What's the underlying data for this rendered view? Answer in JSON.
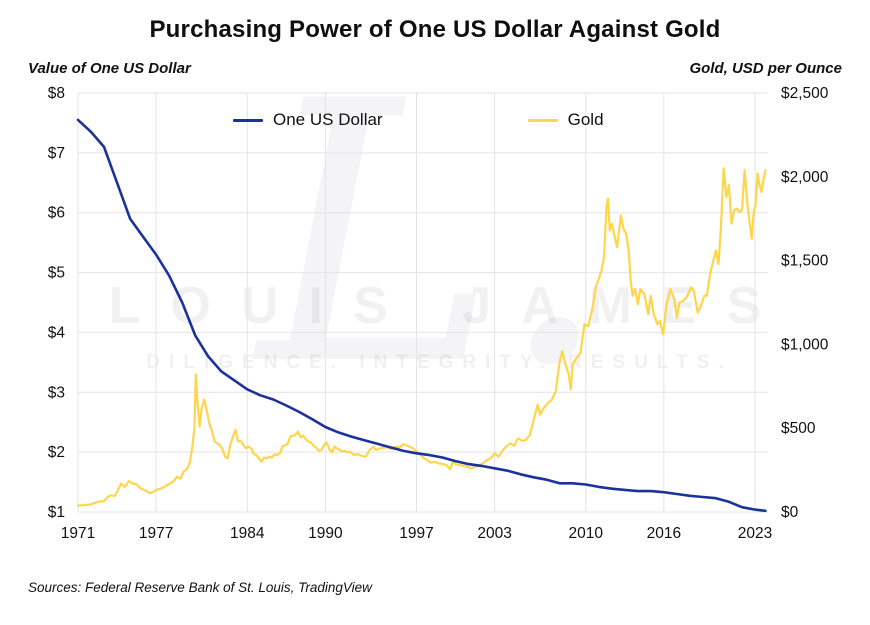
{
  "title": "Purchasing Power of One US Dollar Against Gold",
  "sources": "Sources: Federal Reserve Bank of St. Louis, TradingView",
  "watermark": {
    "monogram": "L.",
    "main": "LOUIS JAMES",
    "sub": "DILIGENCE. INTEGRITY. RESULTS."
  },
  "chart_data": {
    "type": "line",
    "title": "Purchasing Power of One US Dollar Against Gold",
    "grid": true,
    "grid_color": "#e4e4e4",
    "legend_position": "top-center",
    "x_min": 1971,
    "x_max": 2024,
    "x_ticks": [
      {
        "v": 1971,
        "label": "1971"
      },
      {
        "v": 1977,
        "label": "1977"
      },
      {
        "v": 1984,
        "label": "1984"
      },
      {
        "v": 1990,
        "label": "1990"
      },
      {
        "v": 1997,
        "label": "1997"
      },
      {
        "v": 2003,
        "label": "2003"
      },
      {
        "v": 2010,
        "label": "2010"
      },
      {
        "v": 2016,
        "label": "2016"
      },
      {
        "v": 2023,
        "label": "2023"
      }
    ],
    "left_axis": {
      "title": "Value of One US Dollar",
      "min": 1,
      "max": 8,
      "ticks": [
        {
          "v": 1,
          "label": "$1"
        },
        {
          "v": 2,
          "label": "$2"
        },
        {
          "v": 3,
          "label": "$3"
        },
        {
          "v": 4,
          "label": "$4"
        },
        {
          "v": 5,
          "label": "$5"
        },
        {
          "v": 6,
          "label": "$6"
        },
        {
          "v": 7,
          "label": "$7"
        },
        {
          "v": 8,
          "label": "$8"
        }
      ]
    },
    "right_axis": {
      "title": "Gold, USD per Ounce",
      "min": 0,
      "max": 2500,
      "ticks": [
        {
          "v": 0,
          "label": "$0"
        },
        {
          "v": 500,
          "label": "$500"
        },
        {
          "v": 1000,
          "label": "$1,000"
        },
        {
          "v": 1500,
          "label": "$1,500"
        },
        {
          "v": 2000,
          "label": "$2,000"
        },
        {
          "v": 2500,
          "label": "$2,500"
        }
      ]
    },
    "series": [
      {
        "name": "One US Dollar",
        "axis": "left",
        "color": "#1a339b",
        "width": 2.6,
        "points": [
          [
            1971,
            7.55
          ],
          [
            1972,
            7.35
          ],
          [
            1973,
            7.1
          ],
          [
            1974,
            6.5
          ],
          [
            1975,
            5.9
          ],
          [
            1976,
            5.6
          ],
          [
            1977,
            5.3
          ],
          [
            1978,
            4.95
          ],
          [
            1979,
            4.5
          ],
          [
            1980,
            3.95
          ],
          [
            1981,
            3.6
          ],
          [
            1982,
            3.35
          ],
          [
            1983,
            3.2
          ],
          [
            1984,
            3.05
          ],
          [
            1985,
            2.95
          ],
          [
            1986,
            2.88
          ],
          [
            1987,
            2.78
          ],
          [
            1988,
            2.67
          ],
          [
            1989,
            2.55
          ],
          [
            1990,
            2.42
          ],
          [
            1991,
            2.33
          ],
          [
            1992,
            2.26
          ],
          [
            1993,
            2.2
          ],
          [
            1994,
            2.14
          ],
          [
            1995,
            2.08
          ],
          [
            1996,
            2.02
          ],
          [
            1997,
            1.98
          ],
          [
            1998,
            1.95
          ],
          [
            1999,
            1.91
          ],
          [
            2000,
            1.85
          ],
          [
            2001,
            1.8
          ],
          [
            2002,
            1.77
          ],
          [
            2003,
            1.73
          ],
          [
            2004,
            1.69
          ],
          [
            2005,
            1.63
          ],
          [
            2006,
            1.58
          ],
          [
            2007,
            1.54
          ],
          [
            2008,
            1.48
          ],
          [
            2009,
            1.48
          ],
          [
            2010,
            1.46
          ],
          [
            2011,
            1.42
          ],
          [
            2012,
            1.39
          ],
          [
            2013,
            1.37
          ],
          [
            2014,
            1.35
          ],
          [
            2015,
            1.35
          ],
          [
            2016,
            1.33
          ],
          [
            2017,
            1.3
          ],
          [
            2018,
            1.27
          ],
          [
            2019,
            1.25
          ],
          [
            2020,
            1.23
          ],
          [
            2021,
            1.17
          ],
          [
            2022,
            1.08
          ],
          [
            2023,
            1.04
          ],
          [
            2023.8,
            1.02
          ]
        ]
      },
      {
        "name": "Gold",
        "axis": "right",
        "color": "#fdd64b",
        "width": 2.2,
        "points": [
          [
            1971,
            38
          ],
          [
            1971.5,
            41
          ],
          [
            1972,
            46
          ],
          [
            1972.5,
            60
          ],
          [
            1973,
            65
          ],
          [
            1973.3,
            90
          ],
          [
            1973.5,
            100
          ],
          [
            1973.8,
            95
          ],
          [
            1974,
            120
          ],
          [
            1974.3,
            170
          ],
          [
            1974.6,
            150
          ],
          [
            1974.9,
            185
          ],
          [
            1975.2,
            170
          ],
          [
            1975.5,
            165
          ],
          [
            1975.8,
            140
          ],
          [
            1976.2,
            128
          ],
          [
            1976.5,
            112
          ],
          [
            1976.8,
            120
          ],
          [
            1977,
            132
          ],
          [
            1977.5,
            144
          ],
          [
            1978,
            168
          ],
          [
            1978.3,
            180
          ],
          [
            1978.6,
            210
          ],
          [
            1978.9,
            200
          ],
          [
            1979.1,
            240
          ],
          [
            1979.4,
            260
          ],
          [
            1979.6,
            300
          ],
          [
            1979.8,
            400
          ],
          [
            1979.95,
            510
          ],
          [
            1980.05,
            820
          ],
          [
            1980.2,
            630
          ],
          [
            1980.35,
            510
          ],
          [
            1980.5,
            620
          ],
          [
            1980.7,
            670
          ],
          [
            1980.9,
            600
          ],
          [
            1981.1,
            525
          ],
          [
            1981.3,
            480
          ],
          [
            1981.5,
            420
          ],
          [
            1981.7,
            410
          ],
          [
            1981.9,
            400
          ],
          [
            1982.1,
            375
          ],
          [
            1982.3,
            330
          ],
          [
            1982.5,
            320
          ],
          [
            1982.7,
            400
          ],
          [
            1982.9,
            450
          ],
          [
            1983.1,
            490
          ],
          [
            1983.3,
            420
          ],
          [
            1983.5,
            425
          ],
          [
            1983.7,
            400
          ],
          [
            1983.9,
            380
          ],
          [
            1984.1,
            390
          ],
          [
            1984.3,
            380
          ],
          [
            1984.5,
            345
          ],
          [
            1984.7,
            340
          ],
          [
            1984.9,
            320
          ],
          [
            1985.1,
            300
          ],
          [
            1985.3,
            325
          ],
          [
            1985.5,
            320
          ],
          [
            1985.7,
            330
          ],
          [
            1985.9,
            325
          ],
          [
            1986.1,
            345
          ],
          [
            1986.3,
            340
          ],
          [
            1986.5,
            350
          ],
          [
            1986.7,
            390
          ],
          [
            1986.9,
            400
          ],
          [
            1987.1,
            405
          ],
          [
            1987.3,
            450
          ],
          [
            1987.5,
            455
          ],
          [
            1987.7,
            460
          ],
          [
            1987.9,
            480
          ],
          [
            1988.1,
            445
          ],
          [
            1988.3,
            455
          ],
          [
            1988.5,
            435
          ],
          [
            1988.7,
            420
          ],
          [
            1988.9,
            415
          ],
          [
            1989.1,
            395
          ],
          [
            1989.3,
            385
          ],
          [
            1989.5,
            365
          ],
          [
            1989.7,
            370
          ],
          [
            1989.9,
            400
          ],
          [
            1990.1,
            415
          ],
          [
            1990.3,
            375
          ],
          [
            1990.5,
            355
          ],
          [
            1990.7,
            390
          ],
          [
            1990.9,
            380
          ],
          [
            1991.1,
            370
          ],
          [
            1991.3,
            360
          ],
          [
            1991.5,
            365
          ],
          [
            1991.7,
            355
          ],
          [
            1991.9,
            360
          ],
          [
            1992.2,
            340
          ],
          [
            1992.5,
            345
          ],
          [
            1992.8,
            335
          ],
          [
            1993.1,
            330
          ],
          [
            1993.4,
            370
          ],
          [
            1993.7,
            390
          ],
          [
            1993.9,
            370
          ],
          [
            1994.2,
            380
          ],
          [
            1994.5,
            385
          ],
          [
            1994.8,
            385
          ],
          [
            1995.1,
            375
          ],
          [
            1995.4,
            390
          ],
          [
            1995.7,
            385
          ],
          [
            1996,
            405
          ],
          [
            1996.3,
            395
          ],
          [
            1996.6,
            385
          ],
          [
            1996.9,
            370
          ],
          [
            1997.2,
            350
          ],
          [
            1997.5,
            325
          ],
          [
            1997.8,
            310
          ],
          [
            1998.1,
            295
          ],
          [
            1998.4,
            300
          ],
          [
            1998.7,
            290
          ],
          [
            1999,
            287
          ],
          [
            1999.3,
            280
          ],
          [
            1999.6,
            255
          ],
          [
            1999.8,
            305
          ],
          [
            2000,
            285
          ],
          [
            2000.3,
            280
          ],
          [
            2000.6,
            275
          ],
          [
            2000.9,
            270
          ],
          [
            2001.2,
            260
          ],
          [
            2001.5,
            270
          ],
          [
            2001.8,
            278
          ],
          [
            2002.1,
            290
          ],
          [
            2002.4,
            310
          ],
          [
            2002.7,
            320
          ],
          [
            2003,
            350
          ],
          [
            2003.3,
            330
          ],
          [
            2003.6,
            365
          ],
          [
            2003.9,
            390
          ],
          [
            2004.2,
            410
          ],
          [
            2004.5,
            395
          ],
          [
            2004.8,
            440
          ],
          [
            2005.1,
            425
          ],
          [
            2005.4,
            430
          ],
          [
            2005.7,
            460
          ],
          [
            2006,
            550
          ],
          [
            2006.3,
            640
          ],
          [
            2006.5,
            580
          ],
          [
            2006.8,
            625
          ],
          [
            2007.1,
            650
          ],
          [
            2007.4,
            670
          ],
          [
            2007.7,
            720
          ],
          [
            2008,
            900
          ],
          [
            2008.2,
            960
          ],
          [
            2008.45,
            880
          ],
          [
            2008.7,
            820
          ],
          [
            2008.85,
            730
          ],
          [
            2009,
            880
          ],
          [
            2009.3,
            920
          ],
          [
            2009.6,
            950
          ],
          [
            2009.9,
            1120
          ],
          [
            2010.2,
            1110
          ],
          [
            2010.5,
            1210
          ],
          [
            2010.8,
            1350
          ],
          [
            2011,
            1390
          ],
          [
            2011.2,
            1440
          ],
          [
            2011.4,
            1520
          ],
          [
            2011.6,
            1830
          ],
          [
            2011.7,
            1870
          ],
          [
            2011.85,
            1680
          ],
          [
            2012,
            1720
          ],
          [
            2012.2,
            1650
          ],
          [
            2012.4,
            1580
          ],
          [
            2012.7,
            1770
          ],
          [
            2012.9,
            1690
          ],
          [
            2013.1,
            1660
          ],
          [
            2013.3,
            1560
          ],
          [
            2013.45,
            1380
          ],
          [
            2013.6,
            1290
          ],
          [
            2013.8,
            1330
          ],
          [
            2014,
            1240
          ],
          [
            2014.2,
            1330
          ],
          [
            2014.5,
            1300
          ],
          [
            2014.8,
            1180
          ],
          [
            2015,
            1290
          ],
          [
            2015.2,
            1190
          ],
          [
            2015.5,
            1120
          ],
          [
            2015.7,
            1140
          ],
          [
            2015.95,
            1060
          ],
          [
            2016.2,
            1240
          ],
          [
            2016.5,
            1330
          ],
          [
            2016.8,
            1270
          ],
          [
            2017,
            1160
          ],
          [
            2017.2,
            1250
          ],
          [
            2017.5,
            1260
          ],
          [
            2017.8,
            1290
          ],
          [
            2018.1,
            1340
          ],
          [
            2018.3,
            1320
          ],
          [
            2018.6,
            1190
          ],
          [
            2018.85,
            1230
          ],
          [
            2019.1,
            1290
          ],
          [
            2019.3,
            1290
          ],
          [
            2019.55,
            1420
          ],
          [
            2019.8,
            1500
          ],
          [
            2020,
            1560
          ],
          [
            2020.2,
            1480
          ],
          [
            2020.4,
            1720
          ],
          [
            2020.6,
            2050
          ],
          [
            2020.8,
            1880
          ],
          [
            2021,
            1950
          ],
          [
            2021.2,
            1720
          ],
          [
            2021.4,
            1800
          ],
          [
            2021.6,
            1810
          ],
          [
            2021.8,
            1790
          ],
          [
            2022,
            1800
          ],
          [
            2022.2,
            2040
          ],
          [
            2022.4,
            1850
          ],
          [
            2022.6,
            1720
          ],
          [
            2022.75,
            1630
          ],
          [
            2022.9,
            1790
          ],
          [
            2023.05,
            1840
          ],
          [
            2023.2,
            2020
          ],
          [
            2023.35,
            1950
          ],
          [
            2023.5,
            1910
          ],
          [
            2023.65,
            1980
          ],
          [
            2023.8,
            2040
          ]
        ]
      }
    ]
  }
}
